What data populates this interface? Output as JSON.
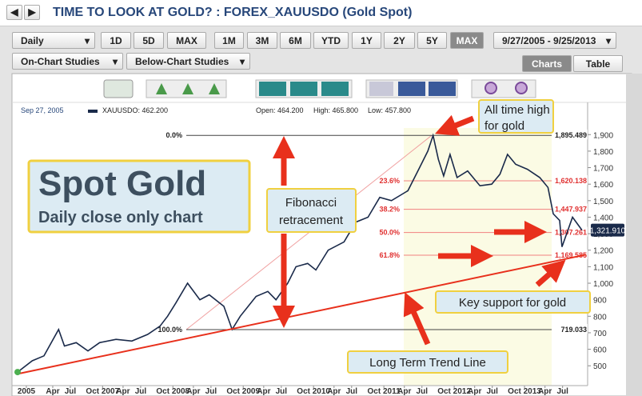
{
  "header": {
    "title": "TIME TO LOOK AT GOLD? : FOREX_XAUUSDO (Gold Spot)"
  },
  "toolbar": {
    "frequency": "Daily",
    "ranges": [
      "1D",
      "5D",
      "MAX"
    ],
    "periods": [
      "1M",
      "3M",
      "6M",
      "YTD",
      "1Y",
      "2Y",
      "5Y",
      "MAX"
    ],
    "date_range": "9/27/2005 - 9/25/2013",
    "on_chart": "On-Chart Studies",
    "below_chart": "Below-Chart Studies",
    "tabs": [
      "Charts",
      "Table"
    ]
  },
  "info": {
    "date": "Sep 27, 2005",
    "symbol": "XAUUSDO: 462.200",
    "open": "Open: 464.200",
    "high": "High: 465.800",
    "low": "Low: 457.800"
  },
  "chart_data": {
    "type": "line",
    "series": [
      {
        "name": "XAUUSDO",
        "color": "#1a2a4a",
        "x": [
          0,
          2.5,
          4.5,
          7,
          8,
          10,
          12,
          14,
          16.8,
          19.5,
          22.2,
          24.3,
          25.6,
          27,
          29,
          31.1,
          32.7,
          35.2,
          36.6,
          38,
          40.7,
          42.7,
          44.1,
          46.1,
          47.5,
          49.5,
          50.9,
          53,
          55.7,
          57.7,
          59.8,
          61.8,
          63.8,
          66.6,
          68.6,
          70,
          70.9,
          71.8,
          72.7,
          73.8,
          75,
          76.8,
          78.9,
          80.9,
          82.3,
          83.6,
          85,
          87,
          89.1,
          90.5,
          91.4,
          92.5,
          92.9,
          94.7,
          96.3
        ],
        "values": [
          462,
          530,
          560,
          720,
          620,
          640,
          590,
          640,
          660,
          650,
          690,
          740,
          800,
          880,
          1000,
          900,
          930,
          860,
          720,
          800,
          920,
          950,
          900,
          1000,
          1100,
          1120,
          1080,
          1200,
          1250,
          1370,
          1400,
          1520,
          1500,
          1560,
          1700,
          1800,
          1895,
          1750,
          1650,
          1780,
          1640,
          1680,
          1590,
          1600,
          1660,
          1780,
          1720,
          1690,
          1640,
          1580,
          1420,
          1380,
          1220,
          1400,
          1321.91
        ]
      }
    ],
    "xlim": [
      0,
      97
    ],
    "xticks": [
      {
        "value": 1.5,
        "label": "2005"
      },
      {
        "value": 6,
        "label": "Apr"
      },
      {
        "value": 9,
        "label": "Jul"
      },
      {
        "value": 14.5,
        "label": "Oct 2007"
      },
      {
        "value": 18,
        "label": "Apr"
      },
      {
        "value": 21,
        "label": "Jul"
      },
      {
        "value": 26.5,
        "label": "Oct 2008"
      },
      {
        "value": 30,
        "label": "Apr"
      },
      {
        "value": 33,
        "label": "Jul"
      },
      {
        "value": 38.5,
        "label": "Oct 2009"
      },
      {
        "value": 42,
        "label": "Apr"
      },
      {
        "value": 45,
        "label": "Jul"
      },
      {
        "value": 50.5,
        "label": "Oct 2010"
      },
      {
        "value": 54,
        "label": "Apr"
      },
      {
        "value": 57,
        "label": "Jul"
      },
      {
        "value": 62.5,
        "label": "Oct 2011"
      },
      {
        "value": 66,
        "label": "Apr"
      },
      {
        "value": 69,
        "label": "Jul"
      },
      {
        "value": 74.5,
        "label": "Oct 2012"
      },
      {
        "value": 78,
        "label": "Apr"
      },
      {
        "value": 81,
        "label": "Jul"
      },
      {
        "value": 86.5,
        "label": "Oct 2013"
      },
      {
        "value": 90,
        "label": "Apr"
      },
      {
        "value": 93,
        "label": "Jul"
      }
    ],
    "ylim": [
      380,
      1940
    ],
    "yticks": [
      500,
      600,
      700,
      800,
      900,
      {
        "value": 1000,
        "label": "1,000"
      },
      {
        "value": 1100,
        "label": "1,100"
      },
      {
        "value": 1200,
        "label": "1,200"
      },
      {
        "value": 1300,
        "label": "1,300"
      },
      {
        "value": 1400,
        "label": "1,400"
      },
      {
        "value": 1500,
        "label": "1,500"
      },
      {
        "value": 1600,
        "label": "1,600"
      },
      {
        "value": 1700,
        "label": "1,700"
      },
      {
        "value": 1800,
        "label": "1,800"
      },
      {
        "value": 1900,
        "label": "1,900"
      }
    ],
    "last_price": {
      "value": 1321.91,
      "label": "1,321.910"
    },
    "fibonacci": [
      {
        "label": "0.0%",
        "value": 1895.489,
        "value_label": "1,895.489"
      },
      {
        "label": "23.6%",
        "value": 1620.138,
        "value_label": "1,620.138"
      },
      {
        "label": "38.2%",
        "value": 1447.937,
        "value_label": "1,447.937"
      },
      {
        "label": "50.0%",
        "value": 1307.261,
        "value_label": "1,307.261"
      },
      {
        "label": "61.8%",
        "value": 1169.585,
        "value_label": "1,169.585"
      },
      {
        "label": "100.0%",
        "value": 719.033,
        "value_label": "719.033"
      }
    ],
    "trend_line": {
      "x": [
        0,
        97
      ],
      "values": [
        451,
        1173
      ]
    },
    "annotations": [
      "Spot Gold",
      "Daily close only chart",
      "Fibonacci",
      "retracement",
      "All time high",
      "for gold",
      "Key support for gold",
      "Long Term Trend Line"
    ]
  }
}
